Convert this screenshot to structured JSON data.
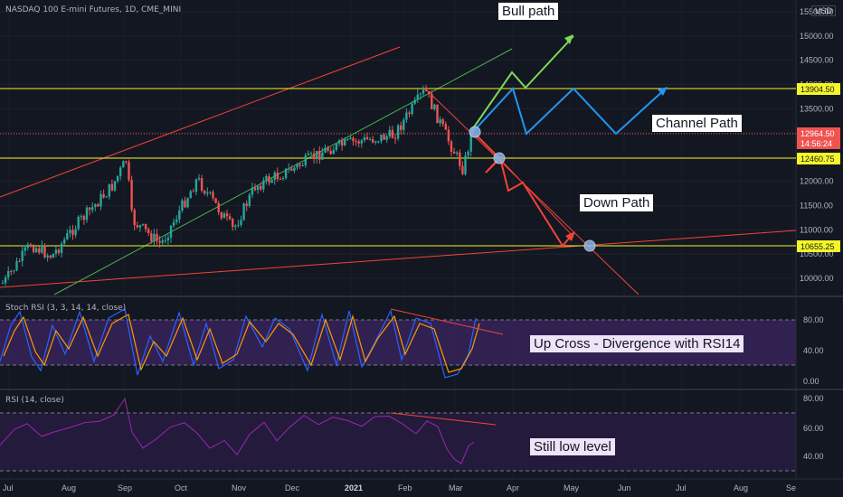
{
  "header": {
    "symbol_title": "NASDAQ 100 E-mini Futures, 1D, CME_MINI",
    "currency": "USD"
  },
  "colors": {
    "background": "#131722",
    "up_candle": "#26a69a",
    "down_candle": "#ef5350",
    "level_line": "#f5f528",
    "green_path": "#7ed957",
    "blue_path": "#2196f3",
    "red_path": "#f44336",
    "stoch_k": "#2962ff",
    "stoch_d": "#ff9800",
    "rsi_line": "#9c27b0",
    "band_fill": "#4a2a78"
  },
  "price_axis": {
    "ticks": [
      "15500.00",
      "15000.00",
      "14500.00",
      "14000.00",
      "13500.00",
      "13000.00",
      "12500.00",
      "12000.00",
      "11500.00",
      "11000.00",
      "10500.00",
      "10000.00"
    ],
    "labels": [
      {
        "value": "13904.50",
        "style": "yellow"
      },
      {
        "value": "12964.50",
        "style": "red",
        "sub": "14:56:24"
      },
      {
        "value": "12460.75",
        "style": "yellow"
      },
      {
        "value": "10655.25",
        "style": "yellow"
      }
    ]
  },
  "time_axis": {
    "ticks": [
      "Jul",
      "Aug",
      "Sep",
      "Oct",
      "Nov",
      "Dec",
      "2021",
      "Feb",
      "Mar",
      "Apr",
      "May",
      "Jun",
      "Jul",
      "Aug",
      "Se"
    ]
  },
  "annotations": {
    "bull": "Bull path",
    "channel": "Channel Path",
    "down": "Down Path",
    "stoch_note": "Up Cross - Divergence with RSI14",
    "rsi_note": "Still low level"
  },
  "stoch": {
    "title": "Stoch RSI (3, 3, 14, 14, close)",
    "ticks": [
      "80.00",
      "40.00",
      "0.00"
    ]
  },
  "rsi": {
    "title": "RSI (14, close)",
    "ticks": [
      "80.00",
      "60.00",
      "40.00"
    ]
  },
  "chart_data": {
    "type": "candlestick",
    "title": "NASDAQ 100 E-mini Futures, 1D, CME_MINI",
    "ylim": [
      9700,
      15800
    ],
    "price_path": [
      [
        "Jun 29, 2020",
        9900
      ],
      [
        "Jul 10, 2020",
        10700
      ],
      [
        "Jul 24, 2020",
        10450
      ],
      [
        "Aug 10, 2020",
        11050
      ],
      [
        "Aug 28, 2020",
        11900
      ],
      [
        "Sep 2, 2020",
        12450
      ],
      [
        "Sep 8, 2020",
        11200
      ],
      [
        "Sep 23, 2020",
        10700
      ],
      [
        "Oct 12, 2020",
        12050
      ],
      [
        "Oct 30, 2020",
        11000
      ],
      [
        "Nov 9, 2020",
        11900
      ],
      [
        "Nov 30, 2020",
        12300
      ],
      [
        "Dec 21, 2020",
        12650
      ],
      [
        "Jan 4, 2021",
        12800
      ],
      [
        "Jan 27, 2021",
        12950
      ],
      [
        "Feb 12, 2021",
        13880
      ],
      [
        "Feb 26, 2021",
        12950
      ],
      [
        "Mar 4, 2021",
        12250
      ],
      [
        "Mar 16, 2021",
        12960
      ]
    ],
    "horizontal_levels": [
      13904.5,
      12460.75,
      10655.25
    ],
    "last_price": 12964.5,
    "scenarios": [
      {
        "name": "Bull path",
        "points": [
          [
            "Mar 16, 2021",
            12960
          ],
          [
            "Mar 30, 2021",
            14200
          ],
          [
            "Apr 14, 2021",
            13950
          ],
          [
            "May 4, 2021",
            15000
          ]
        ]
      },
      {
        "name": "Channel Path",
        "points": [
          [
            "Mar 16, 2021",
            12960
          ],
          [
            "Apr 1, 2021",
            13904.5
          ],
          [
            "Apr 14, 2021",
            12960
          ],
          [
            "May 4, 2021",
            13904.5
          ],
          [
            "May 27, 2021",
            12960
          ],
          [
            "Jun 21, 2021",
            13904.5
          ]
        ]
      },
      {
        "name": "Down Path",
        "points": [
          [
            "Mar 16, 2021",
            12960
          ],
          [
            "Mar 24, 2021",
            12460.75
          ],
          [
            "Mar 30, 2021",
            12000
          ],
          [
            "Apr 7, 2021",
            12300
          ],
          [
            "Apr 28, 2021",
            10655.25
          ],
          [
            "May 4, 2021",
            10850
          ]
        ]
      }
    ],
    "stoch_rsi": {
      "ylim": [
        0,
        100
      ],
      "bands": [
        20,
        80
      ],
      "ticks": [
        80,
        40,
        0
      ]
    },
    "rsi14": {
      "ylim": [
        25,
        85
      ],
      "bands": [
        30,
        70
      ],
      "ticks": [
        80,
        60,
        40
      ]
    }
  }
}
